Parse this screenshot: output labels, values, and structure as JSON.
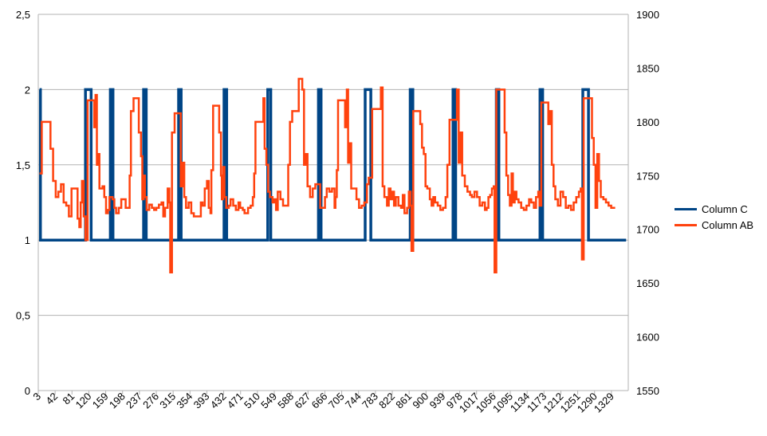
{
  "chart_data": {
    "type": "line",
    "title": "",
    "xlabel": "",
    "ylabel": "",
    "y2label": "",
    "grid": true,
    "legend_position": "right",
    "x_tick_labels": [
      "3",
      "42",
      "81",
      "120",
      "159",
      "198",
      "237",
      "276",
      "315",
      "354",
      "393",
      "432",
      "471",
      "510",
      "549",
      "588",
      "627",
      "666",
      "705",
      "744",
      "783",
      "822",
      "861",
      "900",
      "939",
      "978",
      "1017",
      "1056",
      "1095",
      "1134",
      "1173",
      "1212",
      "1251",
      "1290",
      "1329"
    ],
    "x_range": [
      0,
      1350
    ],
    "y_left": {
      "range": [
        0,
        2.5
      ],
      "ticks": [
        "0",
        "0,5",
        "1",
        "1,5",
        "2",
        "2,5"
      ],
      "tick_values": [
        0,
        0.5,
        1,
        1.5,
        2,
        2.5
      ]
    },
    "y_right": {
      "range": [
        1550,
        1900
      ],
      "ticks": [
        "1550",
        "1600",
        "1650",
        "1700",
        "1750",
        "1800",
        "1850",
        "1900"
      ],
      "tick_values": [
        1550,
        1600,
        1650,
        1700,
        1750,
        1800,
        1850,
        1900
      ]
    },
    "series": [
      {
        "name": "Column C",
        "color": "#004586",
        "axis": "left",
        "points": [
          [
            3,
            2
          ],
          [
            4,
            2
          ],
          [
            5,
            1
          ],
          [
            107,
            1
          ],
          [
            108,
            2
          ],
          [
            120,
            2
          ],
          [
            121,
            1
          ],
          [
            164,
            1
          ],
          [
            165,
            2
          ],
          [
            170,
            2
          ],
          [
            171,
            1
          ],
          [
            240,
            1
          ],
          [
            241,
            2
          ],
          [
            246,
            2
          ],
          [
            247,
            1
          ],
          [
            320,
            1
          ],
          [
            321,
            2
          ],
          [
            326,
            2
          ],
          [
            327,
            1
          ],
          [
            424,
            1
          ],
          [
            425,
            2
          ],
          [
            430,
            2
          ],
          [
            431,
            1
          ],
          [
            524,
            1
          ],
          [
            525,
            2
          ],
          [
            531,
            2
          ],
          [
            532,
            1
          ],
          [
            640,
            1
          ],
          [
            641,
            2
          ],
          [
            646,
            2
          ],
          [
            647,
            1
          ],
          [
            747,
            1
          ],
          [
            748,
            2
          ],
          [
            760,
            2
          ],
          [
            761,
            1
          ],
          [
            850,
            1
          ],
          [
            851,
            2
          ],
          [
            856,
            2
          ],
          [
            857,
            1
          ],
          [
            948,
            1
          ],
          [
            949,
            2
          ],
          [
            954,
            2
          ],
          [
            955,
            1
          ],
          [
            1047,
            1
          ],
          [
            1048,
            2
          ],
          [
            1053,
            2
          ],
          [
            1054,
            1
          ],
          [
            1147,
            1
          ],
          [
            1148,
            2
          ],
          [
            1153,
            2
          ],
          [
            1154,
            1
          ],
          [
            1245,
            1
          ],
          [
            1246,
            2
          ],
          [
            1258,
            2
          ],
          [
            1259,
            1
          ],
          [
            1345,
            1
          ]
        ]
      },
      {
        "name": "Column AB",
        "color": "#ff420e",
        "axis": "right",
        "points": [
          [
            3,
            1752
          ],
          [
            8,
            1800
          ],
          [
            22,
            1800
          ],
          [
            28,
            1775
          ],
          [
            34,
            1745
          ],
          [
            40,
            1730
          ],
          [
            46,
            1735
          ],
          [
            52,
            1742
          ],
          [
            58,
            1725
          ],
          [
            64,
            1722
          ],
          [
            70,
            1712
          ],
          [
            76,
            1738
          ],
          [
            84,
            1738
          ],
          [
            90,
            1710
          ],
          [
            94,
            1702
          ],
          [
            97,
            1725
          ],
          [
            100,
            1745
          ],
          [
            104,
            1712
          ],
          [
            108,
            1690
          ],
          [
            113,
            1820
          ],
          [
            125,
            1820
          ],
          [
            128,
            1795
          ],
          [
            131,
            1825
          ],
          [
            134,
            1760
          ],
          [
            137,
            1770
          ],
          [
            140,
            1738
          ],
          [
            147,
            1740
          ],
          [
            151,
            1730
          ],
          [
            155,
            1715
          ],
          [
            159,
            1718
          ],
          [
            163,
            1730
          ],
          [
            170,
            1728
          ],
          [
            174,
            1720
          ],
          [
            178,
            1715
          ],
          [
            184,
            1720
          ],
          [
            190,
            1728
          ],
          [
            196,
            1728
          ],
          [
            200,
            1720
          ],
          [
            206,
            1720
          ],
          [
            209,
            1750
          ],
          [
            212,
            1810
          ],
          [
            218,
            1822
          ],
          [
            226,
            1822
          ],
          [
            230,
            1790
          ],
          [
            235,
            1768
          ],
          [
            238,
            1728
          ],
          [
            241,
            1750
          ],
          [
            244,
            1730
          ],
          [
            248,
            1718
          ],
          [
            254,
            1723
          ],
          [
            260,
            1720
          ],
          [
            265,
            1718
          ],
          [
            270,
            1720
          ],
          [
            276,
            1723
          ],
          [
            282,
            1725
          ],
          [
            286,
            1712
          ],
          [
            290,
            1720
          ],
          [
            296,
            1738
          ],
          [
            300,
            1725
          ],
          [
            302,
            1660
          ],
          [
            306,
            1790
          ],
          [
            312,
            1808
          ],
          [
            322,
            1808
          ],
          [
            326,
            1740
          ],
          [
            330,
            1762
          ],
          [
            334,
            1730
          ],
          [
            338,
            1720
          ],
          [
            344,
            1725
          ],
          [
            350,
            1715
          ],
          [
            356,
            1712
          ],
          [
            366,
            1712
          ],
          [
            372,
            1725
          ],
          [
            376,
            1722
          ],
          [
            381,
            1738
          ],
          [
            386,
            1745
          ],
          [
            390,
            1720
          ],
          [
            394,
            1715
          ],
          [
            396,
            1755
          ],
          [
            400,
            1815
          ],
          [
            410,
            1815
          ],
          [
            414,
            1790
          ],
          [
            418,
            1750
          ],
          [
            420,
            1728
          ],
          [
            423,
            1758
          ],
          [
            426,
            1730
          ],
          [
            430,
            1720
          ],
          [
            436,
            1722
          ],
          [
            440,
            1728
          ],
          [
            446,
            1722
          ],
          [
            452,
            1718
          ],
          [
            458,
            1725
          ],
          [
            462,
            1720
          ],
          [
            468,
            1718
          ],
          [
            472,
            1715
          ],
          [
            480,
            1720
          ],
          [
            486,
            1722
          ],
          [
            491,
            1730
          ],
          [
            494,
            1752
          ],
          [
            497,
            1800
          ],
          [
            512,
            1800
          ],
          [
            515,
            1822
          ],
          [
            518,
            1775
          ],
          [
            522,
            1760
          ],
          [
            526,
            1735
          ],
          [
            530,
            1730
          ],
          [
            536,
            1725
          ],
          [
            540,
            1728
          ],
          [
            544,
            1718
          ],
          [
            548,
            1735
          ],
          [
            554,
            1728
          ],
          [
            560,
            1722
          ],
          [
            566,
            1722
          ],
          [
            572,
            1760
          ],
          [
            576,
            1800
          ],
          [
            581,
            1810
          ],
          [
            590,
            1810
          ],
          [
            596,
            1840
          ],
          [
            600,
            1840
          ],
          [
            604,
            1830
          ],
          [
            608,
            1760
          ],
          [
            612,
            1770
          ],
          [
            616,
            1740
          ],
          [
            622,
            1730
          ],
          [
            628,
            1738
          ],
          [
            634,
            1742
          ],
          [
            640,
            1742
          ],
          [
            645,
            1720
          ],
          [
            652,
            1720
          ],
          [
            656,
            1730
          ],
          [
            660,
            1738
          ],
          [
            666,
            1735
          ],
          [
            672,
            1738
          ],
          [
            678,
            1720
          ],
          [
            680,
            1730
          ],
          [
            683,
            1755
          ],
          [
            686,
            1820
          ],
          [
            698,
            1820
          ],
          [
            702,
            1795
          ],
          [
            706,
            1830
          ],
          [
            709,
            1762
          ],
          [
            712,
            1780
          ],
          [
            716,
            1738
          ],
          [
            722,
            1738
          ],
          [
            728,
            1728
          ],
          [
            734,
            1720
          ],
          [
            740,
            1722
          ],
          [
            746,
            1725
          ],
          [
            752,
            1742
          ],
          [
            756,
            1748
          ],
          [
            760,
            1748
          ],
          [
            764,
            1812
          ],
          [
            780,
            1812
          ],
          [
            784,
            1832
          ],
          [
            788,
            1740
          ],
          [
            792,
            1730
          ],
          [
            798,
            1722
          ],
          [
            802,
            1738
          ],
          [
            806,
            1728
          ],
          [
            810,
            1735
          ],
          [
            814,
            1722
          ],
          [
            818,
            1730
          ],
          [
            824,
            1722
          ],
          [
            830,
            1720
          ],
          [
            834,
            1732
          ],
          [
            838,
            1715
          ],
          [
            844,
            1720
          ],
          [
            848,
            1735
          ],
          [
            852,
            1722
          ],
          [
            854,
            1680
          ],
          [
            858,
            1810
          ],
          [
            870,
            1810
          ],
          [
            874,
            1798
          ],
          [
            878,
            1776
          ],
          [
            882,
            1770
          ],
          [
            886,
            1740
          ],
          [
            890,
            1738
          ],
          [
            896,
            1728
          ],
          [
            900,
            1722
          ],
          [
            904,
            1730
          ],
          [
            908,
            1725
          ],
          [
            914,
            1722
          ],
          [
            920,
            1718
          ],
          [
            926,
            1720
          ],
          [
            932,
            1730
          ],
          [
            936,
            1760
          ],
          [
            941,
            1802
          ],
          [
            954,
            1802
          ],
          [
            958,
            1830
          ],
          [
            962,
            1762
          ],
          [
            966,
            1790
          ],
          [
            970,
            1750
          ],
          [
            976,
            1740
          ],
          [
            982,
            1735
          ],
          [
            988,
            1732
          ],
          [
            992,
            1730
          ],
          [
            998,
            1735
          ],
          [
            1004,
            1730
          ],
          [
            1010,
            1722
          ],
          [
            1016,
            1725
          ],
          [
            1022,
            1718
          ],
          [
            1026,
            1720
          ],
          [
            1030,
            1730
          ],
          [
            1034,
            1732
          ],
          [
            1038,
            1738
          ],
          [
            1042,
            1740
          ],
          [
            1044,
            1660
          ],
          [
            1048,
            1830
          ],
          [
            1063,
            1830
          ],
          [
            1067,
            1790
          ],
          [
            1071,
            1750
          ],
          [
            1075,
            1732
          ],
          [
            1079,
            1722
          ],
          [
            1083,
            1752
          ],
          [
            1086,
            1725
          ],
          [
            1090,
            1735
          ],
          [
            1094,
            1728
          ],
          [
            1099,
            1725
          ],
          [
            1105,
            1720
          ],
          [
            1111,
            1718
          ],
          [
            1117,
            1722
          ],
          [
            1123,
            1728
          ],
          [
            1128,
            1725
          ],
          [
            1134,
            1720
          ],
          [
            1139,
            1730
          ],
          [
            1144,
            1735
          ],
          [
            1147,
            1722
          ],
          [
            1151,
            1818
          ],
          [
            1163,
            1818
          ],
          [
            1167,
            1798
          ],
          [
            1171,
            1810
          ],
          [
            1175,
            1760
          ],
          [
            1179,
            1740
          ],
          [
            1183,
            1728
          ],
          [
            1189,
            1722
          ],
          [
            1195,
            1735
          ],
          [
            1201,
            1730
          ],
          [
            1207,
            1720
          ],
          [
            1213,
            1722
          ],
          [
            1219,
            1718
          ],
          [
            1225,
            1725
          ],
          [
            1231,
            1730
          ],
          [
            1237,
            1735
          ],
          [
            1241,
            1738
          ],
          [
            1244,
            1672
          ],
          [
            1248,
            1822
          ],
          [
            1263,
            1822
          ],
          [
            1267,
            1785
          ],
          [
            1271,
            1760
          ],
          [
            1275,
            1720
          ],
          [
            1279,
            1770
          ],
          [
            1283,
            1745
          ],
          [
            1287,
            1730
          ],
          [
            1293,
            1728
          ],
          [
            1299,
            1725
          ],
          [
            1305,
            1722
          ],
          [
            1311,
            1720
          ],
          [
            1320,
            1720
          ]
        ]
      }
    ]
  }
}
